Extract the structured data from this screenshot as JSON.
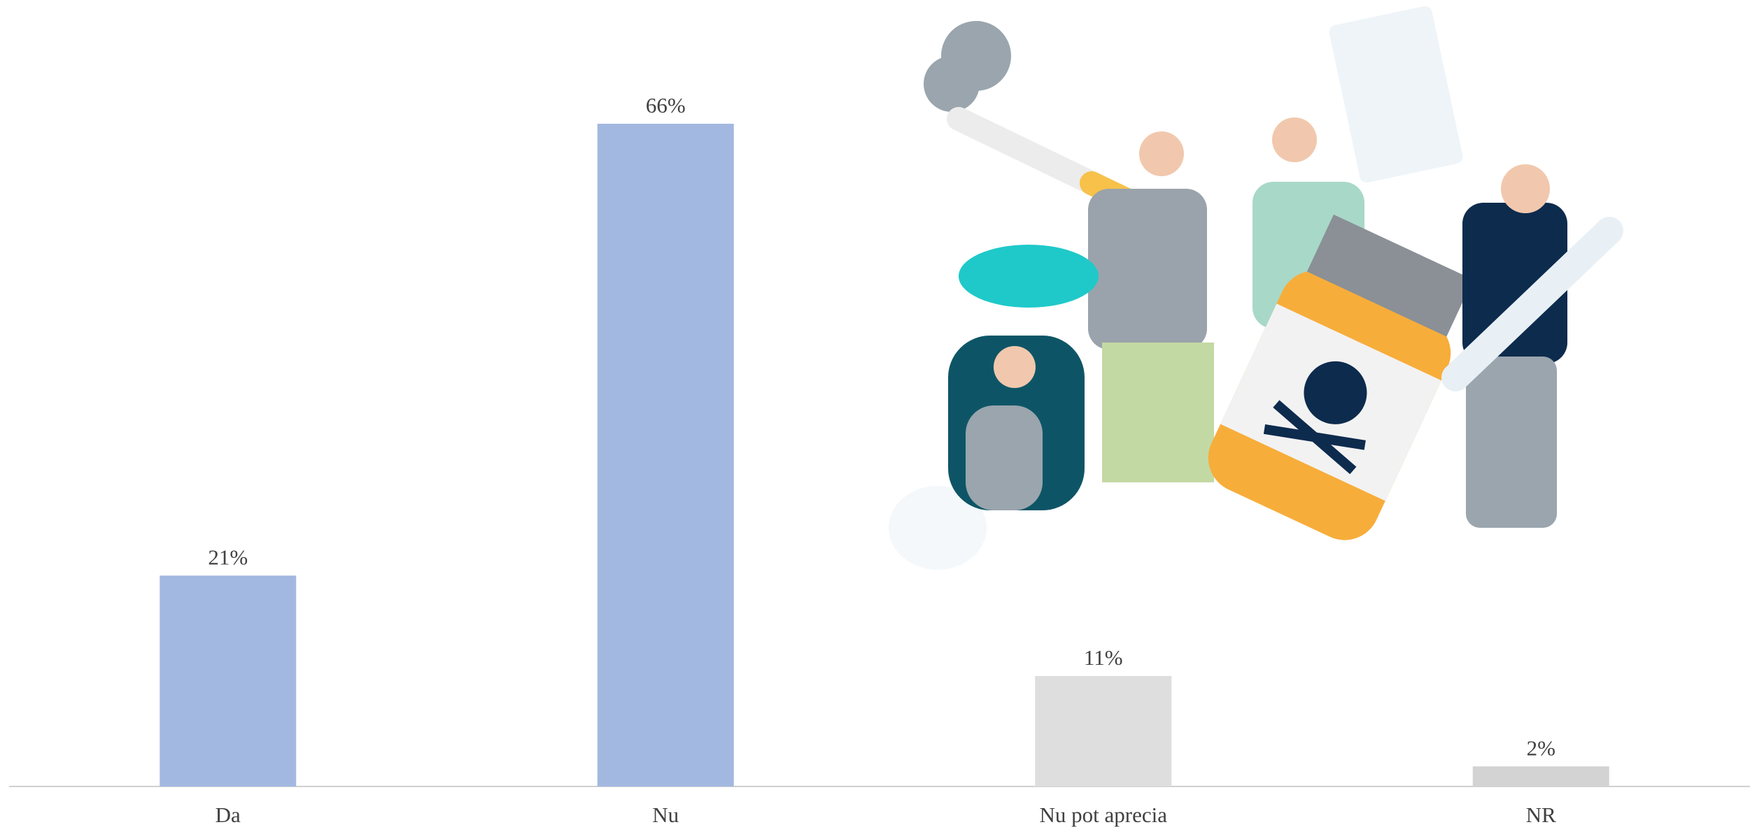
{
  "chart_data": {
    "type": "bar",
    "categories": [
      "Da",
      "Nu",
      "Nu pot aprecia",
      "NR"
    ],
    "values": [
      21,
      66,
      11,
      2
    ],
    "value_labels": [
      "21%",
      "66%",
      "11%",
      "2%"
    ],
    "colors": [
      "#a3b8e0",
      "#a3b8e0",
      "#dedede",
      "#d3d3d3"
    ]
  }
}
